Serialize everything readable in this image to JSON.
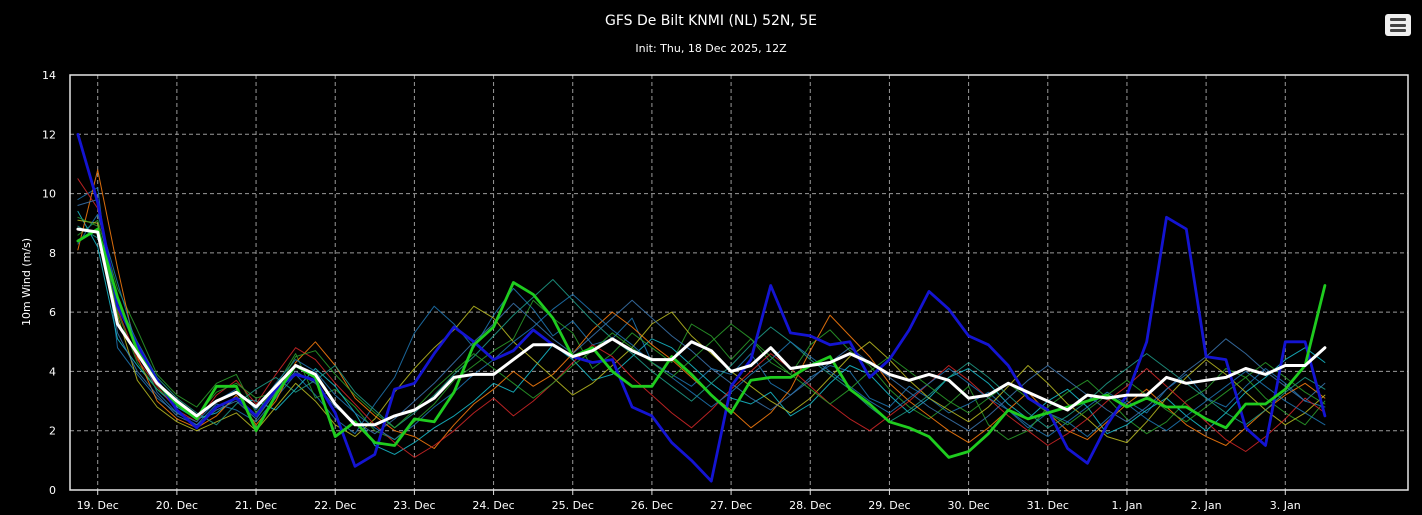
{
  "chart_data": {
    "type": "line",
    "title": "GFS De Bilt KNMI (NL) 52N, 5E",
    "subtitle": "Init: Thu, 18 Dec 2025, 12Z",
    "xlabel": "",
    "ylabel": "10m Wind (m/s)",
    "ylim": [
      0,
      14
    ],
    "yticks": [
      0,
      2,
      4,
      6,
      8,
      10,
      12,
      14
    ],
    "x_start": "18 Dec 2025 18Z",
    "x_step_hours": 6,
    "xlim_days": [
      18.65,
      35.55
    ],
    "x_tick_labels": [
      {
        "day": 19,
        "label": "19. Dec"
      },
      {
        "day": 20,
        "label": "20. Dec"
      },
      {
        "day": 21,
        "label": "21. Dec"
      },
      {
        "day": 22,
        "label": "22. Dec"
      },
      {
        "day": 23,
        "label": "23. Dec"
      },
      {
        "day": 24,
        "label": "24. Dec"
      },
      {
        "day": 25,
        "label": "25. Dec"
      },
      {
        "day": 26,
        "label": "26. Dec"
      },
      {
        "day": 27,
        "label": "27. Dec"
      },
      {
        "day": 28,
        "label": "28. Dec"
      },
      {
        "day": 29,
        "label": "29. Dec"
      },
      {
        "day": 30,
        "label": "30. Dec"
      },
      {
        "day": 31,
        "label": "31. Dec"
      },
      {
        "day": 32,
        "label": "1. Jan"
      },
      {
        "day": 33,
        "label": "2. Jan"
      },
      {
        "day": 34,
        "label": "3. Jan"
      }
    ],
    "grid": true,
    "legend": "none",
    "colors": {
      "mean": "#ffffff",
      "control": "#1fcc1f",
      "operational": "#1414d2",
      "members": [
        "#1f77b4",
        "#2ca02c",
        "#17becf",
        "#ff7f0e",
        "#bcbd22",
        "#d62728",
        "#1f9e89",
        "#3b75af"
      ]
    },
    "series": [
      {
        "role": "mean",
        "values": [
          8.8,
          8.7,
          5.6,
          4.6,
          3.6,
          3.0,
          2.5,
          3.0,
          3.3,
          2.8,
          3.5,
          4.2,
          3.9,
          2.9,
          2.2,
          2.2,
          2.5,
          2.7,
          3.1,
          3.8,
          3.9,
          3.9,
          4.4,
          4.9,
          4.9,
          4.5,
          4.7,
          5.1,
          4.7,
          4.4,
          4.4,
          5.0,
          4.7,
          4.0,
          4.2,
          4.8,
          4.1,
          4.2,
          4.3,
          4.6,
          4.3,
          3.9,
          3.7,
          3.9,
          3.7,
          3.1,
          3.2,
          3.6,
          3.3,
          3.0,
          2.7,
          3.2,
          3.1,
          3.2,
          3.2,
          3.8,
          3.6,
          3.7,
          3.8,
          4.1,
          3.9,
          4.2,
          4.2,
          4.8
        ]
      },
      {
        "role": "control",
        "values": [
          8.4,
          8.8,
          6.5,
          4.7,
          3.6,
          2.9,
          2.4,
          3.5,
          3.5,
          2.0,
          3.2,
          4.2,
          3.8,
          1.8,
          2.3,
          1.6,
          1.5,
          2.4,
          2.3,
          3.3,
          4.9,
          5.5,
          7.0,
          6.6,
          5.8,
          4.5,
          4.8,
          4.0,
          3.5,
          3.5,
          4.5,
          3.9,
          3.2,
          2.6,
          3.7,
          3.8,
          3.8,
          4.2,
          4.5,
          3.4,
          2.9,
          2.3,
          2.1,
          1.8,
          1.1,
          1.3,
          1.9,
          2.7,
          2.4,
          2.6,
          2.8,
          3.0,
          3.2,
          2.8,
          3.1,
          2.8,
          2.8,
          2.4,
          2.1,
          2.9,
          2.9,
          3.4,
          4.2,
          6.9
        ]
      },
      {
        "role": "operational",
        "values": [
          12.0,
          9.7,
          6.2,
          4.9,
          3.7,
          2.7,
          2.1,
          2.8,
          3.1,
          2.5,
          3.4,
          3.9,
          3.7,
          2.6,
          0.8,
          1.2,
          3.4,
          3.6,
          4.6,
          5.5,
          5.0,
          4.4,
          4.7,
          5.4,
          4.9,
          4.5,
          4.3,
          4.4,
          2.8,
          2.5,
          1.6,
          1.0,
          0.3,
          3.5,
          4.4,
          6.9,
          5.3,
          5.2,
          4.9,
          5.0,
          3.8,
          4.4,
          5.4,
          6.7,
          6.1,
          5.2,
          4.9,
          4.2,
          3.1,
          2.7,
          1.4,
          0.9,
          2.2,
          3.2,
          5.0,
          9.2,
          8.8,
          4.5,
          4.4,
          2.1,
          1.5,
          5.0,
          5.0,
          2.5
        ]
      },
      {
        "role": "member",
        "values": [
          9.8,
          10.2,
          4.8,
          3.9,
          3.1,
          2.6,
          2.2,
          2.9,
          2.7,
          2.3,
          3.1,
          3.9,
          3.2,
          2.4,
          1.9,
          2.9,
          3.8,
          5.3,
          6.2,
          5.6,
          4.8,
          5.9,
          6.8,
          6.1,
          5.2,
          5.7,
          4.9,
          5.1,
          5.8,
          4.3,
          3.9,
          3.5,
          4.1,
          3.9,
          4.6,
          3.6,
          3.2,
          3.8,
          4.2,
          4.0,
          3.1,
          2.8,
          3.5,
          3.1,
          2.6,
          2.9,
          3.3,
          2.7,
          2.1,
          2.6,
          2.3,
          1.8,
          2.4,
          3.0,
          2.6,
          3.4,
          3.9,
          3.1,
          2.8,
          3.5,
          4.1,
          3.6,
          3.0,
          2.8
        ]
      },
      {
        "role": "member",
        "values": [
          8.6,
          9.1,
          6.8,
          5.4,
          3.9,
          3.2,
          2.8,
          3.6,
          3.9,
          2.6,
          3.5,
          4.6,
          3.1,
          3.4,
          2.8,
          2.0,
          1.7,
          2.3,
          2.9,
          3.7,
          4.2,
          4.7,
          5.1,
          6.4,
          5.8,
          5.3,
          4.1,
          4.6,
          5.3,
          4.8,
          4.3,
          5.6,
          5.2,
          4.4,
          5.1,
          4.3,
          3.9,
          4.9,
          5.4,
          4.7,
          4.2,
          3.4,
          2.8,
          2.4,
          2.9,
          3.5,
          2.2,
          1.7,
          2.0,
          2.8,
          3.3,
          3.7,
          3.1,
          2.4,
          1.9,
          2.3,
          3.0,
          3.4,
          4.1,
          3.8,
          3.1,
          2.6,
          2.2,
          3.0
        ]
      },
      {
        "role": "member",
        "values": [
          9.4,
          8.2,
          5.1,
          4.2,
          3.4,
          2.8,
          2.4,
          2.6,
          3.1,
          3.0,
          2.7,
          3.4,
          4.1,
          3.5,
          2.6,
          1.5,
          1.2,
          1.6,
          2.1,
          2.5,
          3.0,
          3.6,
          3.3,
          4.1,
          4.9,
          4.4,
          3.7,
          3.9,
          4.5,
          5.1,
          4.8,
          4.2,
          3.6,
          3.1,
          2.9,
          3.3,
          2.5,
          2.9,
          3.6,
          4.2,
          3.9,
          3.2,
          2.6,
          3.1,
          3.8,
          4.1,
          3.6,
          2.9,
          2.4,
          3.0,
          3.4,
          2.8,
          1.9,
          2.2,
          2.7,
          3.1,
          2.5,
          2.0,
          2.6,
          3.3,
          3.8,
          4.4,
          4.8,
          4.3
        ]
      },
      {
        "role": "member",
        "values": [
          8.1,
          10.8,
          7.5,
          4.5,
          3.0,
          2.4,
          2.1,
          2.5,
          3.2,
          2.2,
          3.0,
          4.3,
          5.0,
          4.2,
          3.1,
          2.5,
          2.0,
          1.8,
          1.4,
          2.2,
          2.9,
          3.4,
          4.0,
          3.5,
          3.9,
          4.6,
          5.4,
          6.0,
          5.5,
          4.9,
          4.4,
          3.8,
          3.2,
          2.7,
          2.1,
          2.6,
          3.4,
          4.7,
          5.9,
          5.2,
          4.5,
          3.6,
          3.0,
          2.5,
          2.0,
          1.6,
          2.1,
          2.7,
          3.3,
          2.6,
          2.0,
          1.7,
          2.3,
          2.9,
          3.4,
          2.8,
          2.2,
          1.8,
          1.5,
          2.1,
          2.7,
          3.2,
          3.6,
          3.1
        ]
      },
      {
        "role": "member",
        "values": [
          9.1,
          9.0,
          5.9,
          3.7,
          2.8,
          2.3,
          2.0,
          2.3,
          2.6,
          2.0,
          2.8,
          3.6,
          3.0,
          2.2,
          1.8,
          2.4,
          3.3,
          4.1,
          4.8,
          5.4,
          6.2,
          5.8,
          5.0,
          4.4,
          3.8,
          3.2,
          3.6,
          4.2,
          4.8,
          5.6,
          6.0,
          5.2,
          4.6,
          4.0,
          3.5,
          3.0,
          2.6,
          3.1,
          3.8,
          4.5,
          5.0,
          4.4,
          3.7,
          3.1,
          2.7,
          2.3,
          2.8,
          3.5,
          4.2,
          3.6,
          2.9,
          2.4,
          1.8,
          1.6,
          2.3,
          3.1,
          3.8,
          4.4,
          3.9,
          3.3,
          2.7,
          2.2,
          2.6,
          3.2
        ]
      },
      {
        "role": "member",
        "values": [
          10.5,
          9.5,
          6.1,
          4.4,
          3.5,
          2.7,
          2.3,
          3.2,
          3.7,
          2.9,
          3.9,
          4.8,
          4.4,
          3.6,
          2.9,
          2.2,
          1.6,
          1.1,
          1.5,
          2.0,
          2.6,
          3.1,
          2.5,
          3.0,
          3.6,
          4.3,
          4.9,
          4.5,
          3.8,
          3.2,
          2.6,
          2.1,
          2.7,
          3.4,
          4.0,
          4.6,
          4.1,
          3.5,
          2.9,
          2.4,
          2.0,
          2.5,
          3.0,
          3.6,
          4.2,
          3.7,
          3.1,
          2.5,
          2.0,
          1.5,
          1.9,
          2.4,
          3.0,
          3.5,
          4.1,
          3.5,
          2.9,
          2.3,
          1.7,
          1.3,
          1.8,
          2.4,
          3.1,
          2.6
        ]
      },
      {
        "role": "member",
        "values": [
          8.9,
          8.5,
          6.4,
          5.0,
          3.8,
          3.1,
          2.6,
          2.2,
          2.9,
          3.4,
          3.8,
          3.3,
          3.7,
          4.2,
          3.3,
          2.7,
          2.1,
          2.6,
          3.2,
          3.9,
          4.5,
          5.2,
          5.9,
          6.5,
          7.1,
          6.4,
          5.7,
          5.1,
          4.6,
          4.0,
          3.5,
          3.0,
          3.6,
          4.2,
          4.9,
          5.5,
          5.0,
          4.4,
          3.9,
          3.4,
          2.8,
          2.3,
          2.7,
          3.2,
          3.8,
          4.3,
          3.8,
          3.2,
          2.6,
          2.1,
          2.5,
          3.0,
          3.6,
          4.1,
          4.6,
          4.1,
          3.6,
          3.1,
          2.6,
          2.2,
          2.7,
          3.3,
          3.8,
          3.4
        ]
      },
      {
        "role": "member",
        "values": [
          9.6,
          9.8,
          5.3,
          4.0,
          3.2,
          2.5,
          2.2,
          2.7,
          3.0,
          2.4,
          3.3,
          4.0,
          3.6,
          2.8,
          2.3,
          1.9,
          2.4,
          3.0,
          3.6,
          4.3,
          5.0,
          5.6,
          6.3,
          5.7,
          5.1,
          4.6,
          5.2,
          5.8,
          6.4,
          5.8,
          5.2,
          4.7,
          4.1,
          3.6,
          3.1,
          2.7,
          3.2,
          3.7,
          4.3,
          4.8,
          4.3,
          3.8,
          3.3,
          2.8,
          2.4,
          2.0,
          2.5,
          3.1,
          3.7,
          4.2,
          3.7,
          3.2,
          2.7,
          2.3,
          2.8,
          3.4,
          4.0,
          4.5,
          5.1,
          4.6,
          4.0,
          3.5,
          3.0,
          3.6
        ]
      },
      {
        "role": "member",
        "values": [
          8.3,
          9.3,
          7.0,
          4.8,
          3.3,
          2.6,
          2.3,
          3.0,
          3.4,
          2.7,
          3.6,
          4.4,
          4.0,
          3.2,
          2.6,
          2.1,
          1.7,
          2.2,
          2.8,
          3.3,
          3.9,
          4.4,
          5.0,
          5.5,
          6.1,
          6.6,
          6.0,
          5.4,
          4.9,
          4.3,
          3.8,
          3.3,
          2.8,
          3.3,
          3.9,
          4.4,
          5.0,
          4.5,
          4.0,
          3.5,
          3.0,
          2.6,
          3.1,
          3.6,
          4.1,
          3.6,
          3.1,
          2.7,
          2.2,
          1.8,
          2.3,
          2.8,
          3.3,
          2.9,
          2.4,
          2.0,
          2.5,
          3.0,
          3.5,
          4.0,
          3.5,
          3.0,
          2.6,
          2.2
        ]
      },
      {
        "role": "member",
        "values": [
          9.2,
          8.9,
          6.0,
          4.3,
          3.4,
          2.9,
          2.5,
          3.3,
          3.6,
          3.1,
          3.3,
          4.5,
          4.7,
          3.9,
          3.2,
          2.6,
          2.1,
          2.7,
          3.4,
          4.0,
          4.6,
          4.1,
          3.6,
          3.1,
          3.6,
          4.2,
          4.7,
          5.3,
          4.8,
          4.3,
          3.8,
          4.4,
          5.0,
          5.6,
          5.1,
          4.5,
          3.9,
          3.4,
          2.9,
          3.4,
          4.0,
          4.5,
          4.0,
          3.5,
          3.0,
          2.6,
          3.1,
          3.6,
          3.1,
          2.6,
          2.2,
          2.7,
          3.2,
          3.7,
          3.2,
          2.7,
          2.3,
          2.8,
          3.3,
          3.8,
          4.3,
          3.8,
          3.3,
          2.9
        ]
      }
    ]
  }
}
